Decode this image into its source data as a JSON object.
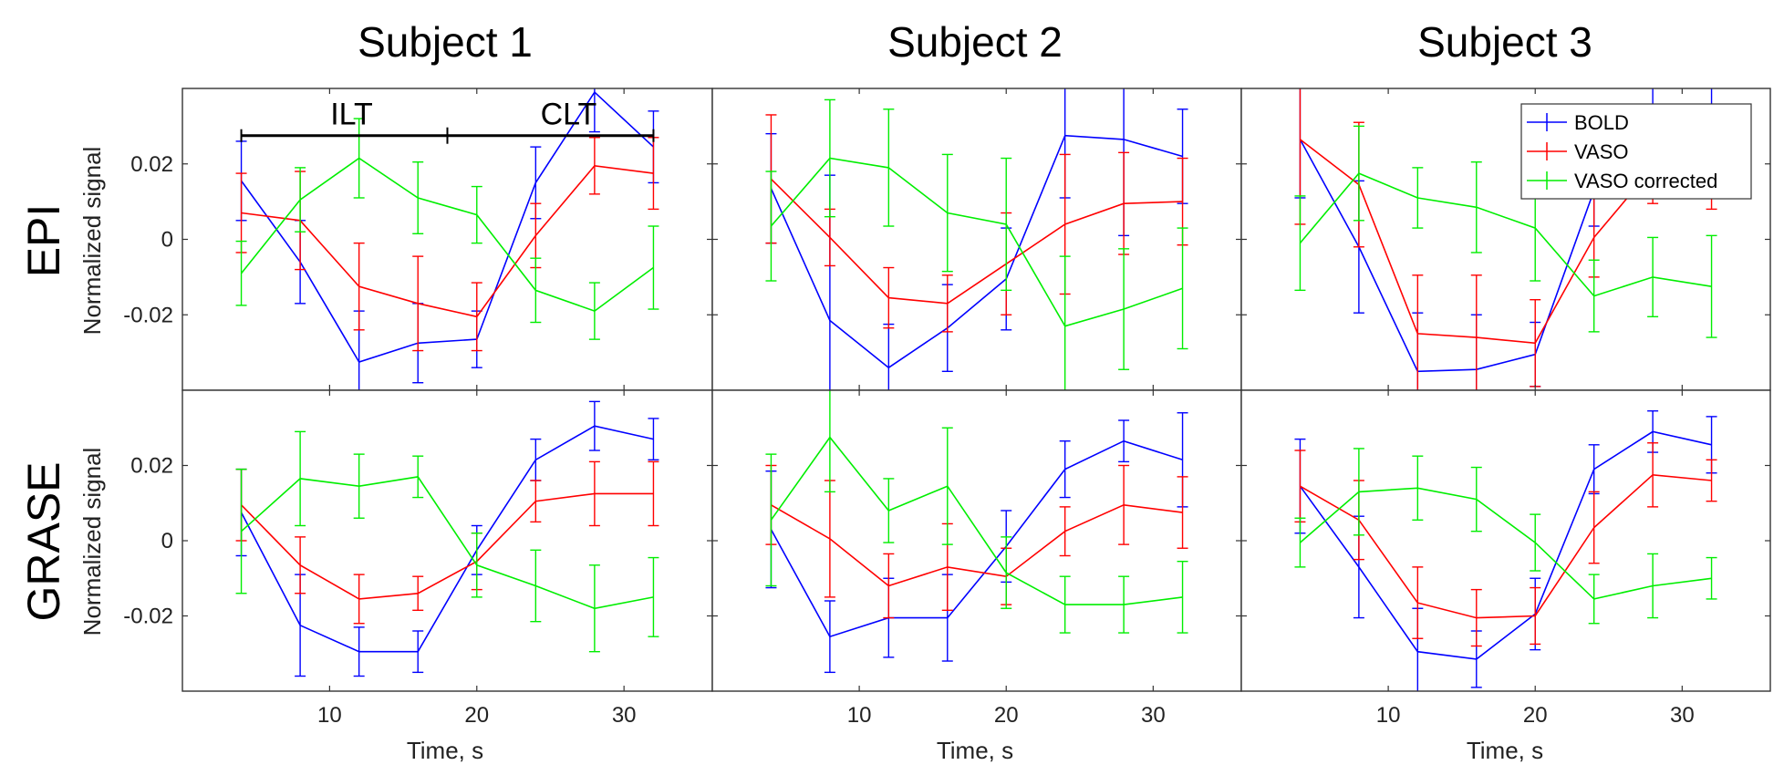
{
  "chart_data": {
    "type": "line",
    "figure": {
      "column_titles": [
        "Subject 1",
        "Subject 2",
        "Subject 3"
      ],
      "row_titles": [
        "EPI",
        "GRASE"
      ],
      "xlabel": "Time, s",
      "ylabel": "Normalized signal",
      "xlim": [
        0,
        36
      ],
      "ylim": [
        -0.04,
        0.04
      ],
      "xticks": [
        10,
        20,
        30
      ],
      "yticks": [
        -0.02,
        0,
        0.02
      ],
      "ytick_labels": [
        "-0.02",
        "0",
        "0.02"
      ],
      "x": [
        4,
        8,
        12,
        16,
        20,
        24,
        28,
        32
      ],
      "colors": {
        "BOLD": "#0000ff",
        "VASO": "#ff0000",
        "VASO corrected": "#00ee00"
      },
      "legend": {
        "entries": [
          "BOLD",
          "VASO",
          "VASO corrected"
        ],
        "placement": "top-right",
        "panel": 2
      },
      "annotations": {
        "labels": [
          "ILT",
          "CLT"
        ],
        "bar_start": 4,
        "bar_split": 18,
        "bar_end": 32,
        "bar_y": 0.0275,
        "panel": 0
      }
    },
    "panels": [
      {
        "row": "EPI",
        "subject": "Subject 1",
        "series": [
          {
            "name": "BOLD",
            "values": [
              0.0155,
              -0.006,
              -0.0325,
              -0.0275,
              -0.0265,
              0.015,
              0.039,
              0.0245
            ],
            "errors": [
              0.0105,
              0.011,
              0.0135,
              0.0105,
              0.0075,
              0.0095,
              0.0105,
              0.0095
            ]
          },
          {
            "name": "VASO",
            "values": [
              0.007,
              0.005,
              -0.0125,
              -0.017,
              -0.0205,
              0.001,
              0.0195,
              0.0175
            ],
            "errors": [
              0.0105,
              0.013,
              0.0115,
              0.0125,
              0.009,
              0.0085,
              0.0075,
              0.0095
            ]
          },
          {
            "name": "VASO corrected",
            "values": [
              -0.009,
              0.0105,
              0.0215,
              0.011,
              0.0065,
              -0.0135,
              -0.019,
              -0.0075
            ],
            "errors": [
              0.0085,
              0.0085,
              0.0105,
              0.0095,
              0.0075,
              0.0085,
              0.0075,
              0.011
            ]
          }
        ]
      },
      {
        "row": "EPI",
        "subject": "Subject 2",
        "series": [
          {
            "name": "BOLD",
            "values": [
              0.0135,
              -0.0215,
              -0.034,
              -0.0235,
              -0.0105,
              0.0275,
              0.0265,
              0.022
            ],
            "errors": [
              0.0145,
              0.0385,
              0.0115,
              0.0115,
              0.0135,
              0.0165,
              0.0255,
              0.0125
            ]
          },
          {
            "name": "VASO",
            "values": [
              0.016,
              0.0005,
              -0.0155,
              -0.017,
              -0.0065,
              0.004,
              0.0095,
              0.01
            ],
            "errors": [
              0.017,
              0.0075,
              0.008,
              0.0075,
              0.0135,
              0.0185,
              0.0135,
              0.0115
            ]
          },
          {
            "name": "VASO corrected",
            "values": [
              0.0035,
              0.0215,
              0.019,
              0.007,
              0.004,
              -0.023,
              -0.0185,
              -0.013
            ],
            "errors": [
              0.0145,
              0.0155,
              0.0155,
              0.0155,
              0.0175,
              0.0185,
              0.016,
              0.016
            ]
          }
        ]
      },
      {
        "row": "EPI",
        "subject": "Subject 3",
        "series": [
          {
            "name": "BOLD",
            "values": [
              0.0265,
              -0.002,
              -0.035,
              -0.0345,
              -0.0305,
              0.013,
              0.035,
              0.0355
            ],
            "errors": [
              0.0155,
              0.0175,
              0.0155,
              0.0145,
              0.0085,
              0.0095,
              0.0085,
              0.0085
            ]
          },
          {
            "name": "VASO",
            "values": [
              0.0265,
              0.0145,
              -0.025,
              -0.026,
              -0.0275,
              0.0005,
              0.019,
              0.0185
            ],
            "errors": [
              0.0225,
              0.0165,
              0.0155,
              0.0165,
              0.0115,
              0.0105,
              0.0095,
              0.0105
            ]
          },
          {
            "name": "VASO corrected",
            "values": [
              -0.001,
              0.0175,
              0.011,
              0.0085,
              0.003,
              -0.015,
              -0.01,
              -0.0125
            ],
            "errors": [
              0.0125,
              0.0125,
              0.008,
              0.012,
              0.014,
              0.0095,
              0.0105,
              0.0135
            ]
          }
        ]
      },
      {
        "row": "GRASE",
        "subject": "Subject 1",
        "series": [
          {
            "name": "BOLD",
            "values": [
              0.0075,
              -0.0225,
              -0.0295,
              -0.0295,
              -0.0025,
              0.0215,
              0.0305,
              0.027
            ],
            "errors": [
              0.0115,
              0.0135,
              0.0065,
              0.0055,
              0.0065,
              0.0055,
              0.0065,
              0.0055
            ]
          },
          {
            "name": "VASO",
            "values": [
              0.0095,
              -0.0065,
              -0.0155,
              -0.014,
              -0.0055,
              0.0105,
              0.0125,
              0.0125
            ],
            "errors": [
              0.0095,
              0.0075,
              0.0065,
              0.0045,
              0.0075,
              0.0055,
              0.0085,
              0.0085
            ]
          },
          {
            "name": "VASO corrected",
            "values": [
              0.0025,
              0.0165,
              0.0145,
              0.017,
              -0.0065,
              -0.012,
              -0.018,
              -0.015
            ],
            "errors": [
              0.0165,
              0.0125,
              0.0085,
              0.0055,
              0.0085,
              0.0095,
              0.0115,
              0.0105
            ]
          }
        ]
      },
      {
        "row": "GRASE",
        "subject": "Subject 2",
        "series": [
          {
            "name": "BOLD",
            "values": [
              0.003,
              -0.0255,
              -0.0205,
              -0.0205,
              -0.0015,
              0.019,
              0.0265,
              0.0215
            ],
            "errors": [
              0.0155,
              0.0095,
              0.0105,
              0.0115,
              0.0095,
              0.0075,
              0.0055,
              0.0125
            ]
          },
          {
            "name": "VASO",
            "values": [
              0.0095,
              0.0005,
              -0.012,
              -0.007,
              -0.0095,
              0.0025,
              0.0095,
              0.0075
            ],
            "errors": [
              0.0105,
              0.0155,
              0.0085,
              0.0115,
              0.0075,
              0.0065,
              0.0105,
              0.0095
            ]
          },
          {
            "name": "VASO corrected",
            "values": [
              0.0055,
              0.0275,
              0.008,
              0.0145,
              -0.0085,
              -0.017,
              -0.017,
              -0.015
            ],
            "errors": [
              0.0175,
              0.0145,
              0.0085,
              0.0155,
              0.0095,
              0.0075,
              0.0075,
              0.0095
            ]
          }
        ]
      },
      {
        "row": "GRASE",
        "subject": "Subject 3",
        "series": [
          {
            "name": "BOLD",
            "values": [
              0.0145,
              -0.007,
              -0.0295,
              -0.0315,
              -0.0195,
              0.019,
              0.029,
              0.0255
            ],
            "errors": [
              0.0125,
              0.0135,
              0.0115,
              0.0075,
              0.0095,
              0.0065,
              0.0055,
              0.0075
            ]
          },
          {
            "name": "VASO",
            "values": [
              0.0145,
              0.0055,
              -0.0165,
              -0.0205,
              -0.02,
              0.0035,
              0.0175,
              0.016
            ],
            "errors": [
              0.0095,
              0.0105,
              0.0095,
              0.0075,
              0.0075,
              0.0095,
              0.0085,
              0.0055
            ]
          },
          {
            "name": "VASO corrected",
            "values": [
              -0.0005,
              0.013,
              0.014,
              0.011,
              -0.0005,
              -0.0155,
              -0.012,
              -0.01
            ],
            "errors": [
              0.0065,
              0.0115,
              0.0085,
              0.0085,
              0.0075,
              0.0065,
              0.0085,
              0.0055
            ]
          }
        ]
      }
    ]
  }
}
